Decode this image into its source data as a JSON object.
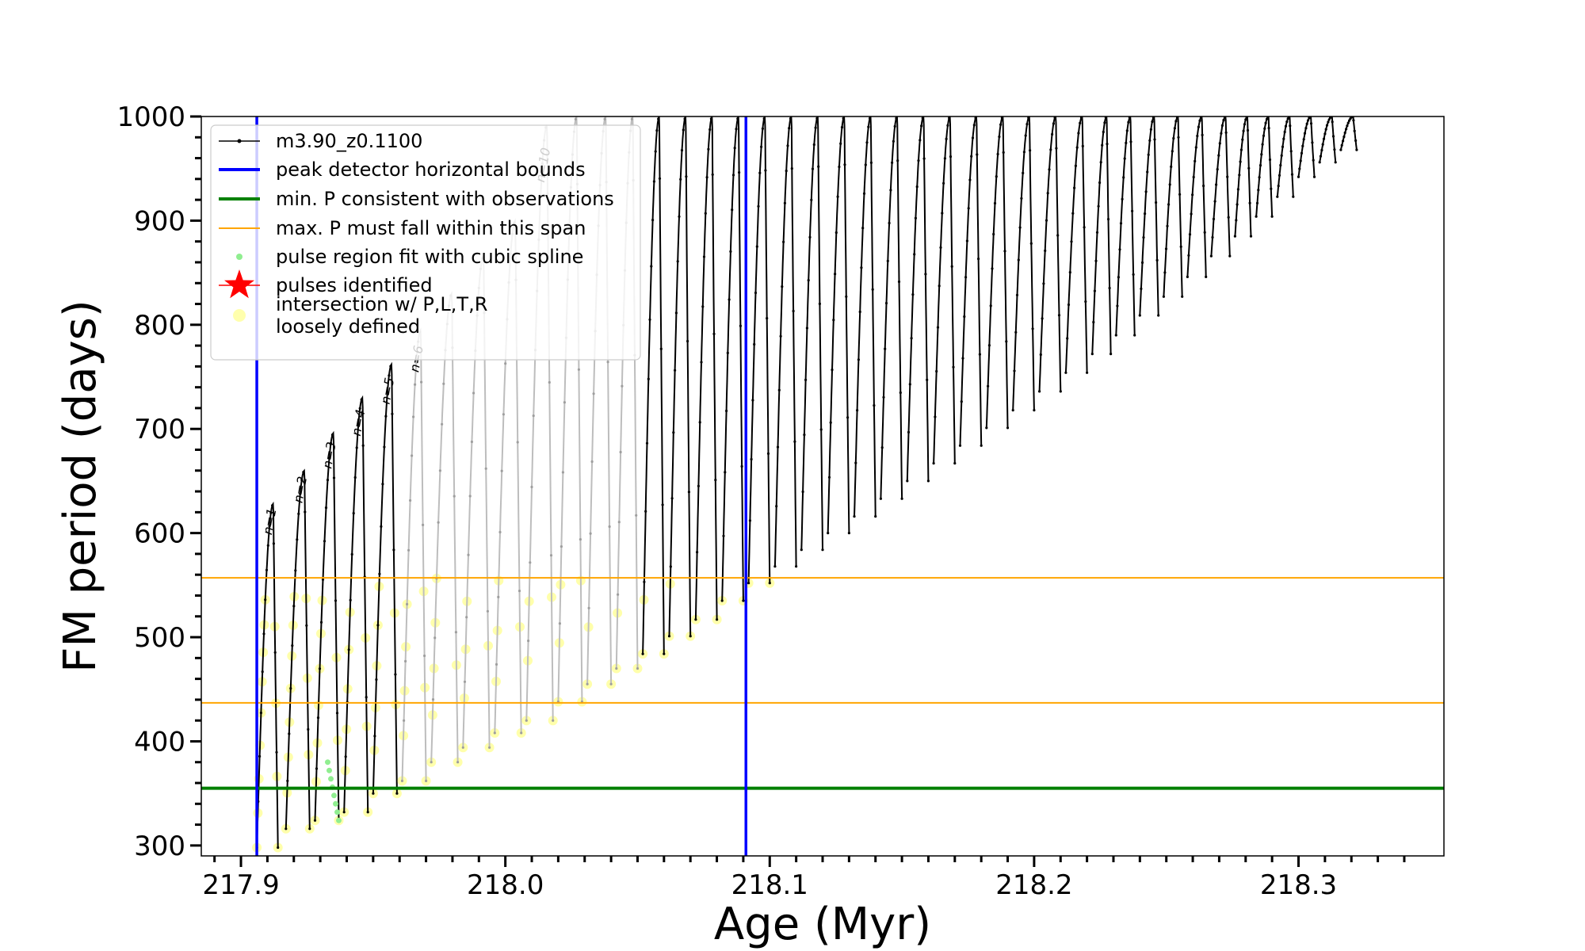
{
  "chart_data": {
    "type": "line",
    "title": "",
    "xlabel": "Age (Myr)",
    "ylabel": "FM period (days)",
    "xlim": [
      217.885,
      218.355
    ],
    "ylim": [
      290,
      1000
    ],
    "x_ticks": [
      217.9,
      218.0,
      218.1,
      218.2,
      218.3
    ],
    "x_tick_labels": [
      "217.9",
      "218.0",
      "218.1",
      "218.2",
      "218.3"
    ],
    "y_ticks": [
      300,
      400,
      500,
      600,
      700,
      800,
      900,
      1000
    ],
    "y_tick_labels": [
      "300",
      "400",
      "500",
      "600",
      "700",
      "800",
      "900",
      "1000"
    ],
    "legend_placement": "upper-left",
    "legend": [
      {
        "label": "m3.90_z0.1100",
        "kind": "line-dot",
        "color": "#000000"
      },
      {
        "label": "peak detector horizontal bounds",
        "kind": "line",
        "color": "#0000ff"
      },
      {
        "label": "min. P consistent with observations",
        "kind": "line",
        "color": "#008000"
      },
      {
        "label": "max. P must fall within this span",
        "kind": "thin-line",
        "color": "#ffa500"
      },
      {
        "label": "pulse region fit with cubic spline",
        "kind": "dot",
        "color": "#90ee90"
      },
      {
        "label": "pulses identified",
        "kind": "star",
        "color": "#ff0000"
      },
      {
        "label": [
          "intersection w/ P,L,T,R",
          "loosely defined"
        ],
        "kind": "circle",
        "color": "#ffff99"
      }
    ],
    "vertical_lines": [
      {
        "x": 217.906,
        "color": "#0000ff",
        "role": "peak detector horizontal bounds"
      },
      {
        "x": 218.091,
        "color": "#0000ff",
        "role": "peak detector horizontal bounds"
      }
    ],
    "horizontal_lines": [
      {
        "y": 355,
        "color": "#008000",
        "role": "min. P consistent with observations"
      },
      {
        "y": 437,
        "color": "#ffa500",
        "role": "max. P span lower"
      },
      {
        "y": 557,
        "color": "#ffa500",
        "role": "max. P span upper"
      }
    ],
    "series": [
      {
        "name": "m3.90_z0.1100",
        "color": "#000000",
        "pulses": [
          {
            "n": "n=1",
            "x_start": 217.906,
            "x_end": 217.914,
            "y_min": 298,
            "y_max": 628
          },
          {
            "n": "n=2",
            "x_start": 217.917,
            "x_end": 217.926,
            "y_min": 316,
            "y_max": 660
          },
          {
            "n": "n=3",
            "x_start": 217.928,
            "x_end": 217.937,
            "y_min": 324,
            "y_max": 696
          },
          {
            "n": "n=4",
            "x_start": 217.939,
            "x_end": 217.948,
            "y_min": 332,
            "y_max": 730
          },
          {
            "n": "n=5",
            "x_start": 217.95,
            "x_end": 217.959,
            "y_min": 350,
            "y_max": 762
          },
          {
            "n": "n=6",
            "x_start": 217.961,
            "x_end": 217.97,
            "y_min": 362,
            "y_max": 795
          },
          {
            "n": "",
            "x_start": 217.972,
            "x_end": 217.982,
            "y_min": 380,
            "y_max": 830
          },
          {
            "n": "",
            "x_start": 217.984,
            "x_end": 217.994,
            "y_min": 394,
            "y_max": 866
          },
          {
            "n": "",
            "x_start": 217.996,
            "x_end": 218.006,
            "y_min": 408,
            "y_max": 900
          },
          {
            "n": "n=10",
            "x_start": 218.008,
            "x_end": 218.018,
            "y_min": 420,
            "y_max": 992
          },
          {
            "n": "",
            "x_start": 218.02,
            "x_end": 218.029,
            "y_min": 438,
            "y_max": 1000
          },
          {
            "n": "",
            "x_start": 218.031,
            "x_end": 218.04,
            "y_min": 455,
            "y_max": 1000
          },
          {
            "n": "",
            "x_start": 218.042,
            "x_end": 218.05,
            "y_min": 470,
            "y_max": 1000
          },
          {
            "n": "",
            "x_start": 218.052,
            "x_end": 218.06,
            "y_min": 484,
            "y_max": 1000
          },
          {
            "n": "",
            "x_start": 218.062,
            "x_end": 218.07,
            "y_min": 501,
            "y_max": 1000
          },
          {
            "n": "",
            "x_start": 218.072,
            "x_end": 218.08,
            "y_min": 517,
            "y_max": 1000
          },
          {
            "n": "",
            "x_start": 218.082,
            "x_end": 218.09,
            "y_min": 535,
            "y_max": 1000
          },
          {
            "n": "",
            "x_start": 218.092,
            "x_end": 218.1,
            "y_min": 552,
            "y_max": 1000
          },
          {
            "n": "",
            "x_start": 218.102,
            "x_end": 218.11,
            "y_min": 568,
            "y_max": 1000
          },
          {
            "n": "",
            "x_start": 218.112,
            "x_end": 218.12,
            "y_min": 584,
            "y_max": 1000
          },
          {
            "n": "",
            "x_start": 218.122,
            "x_end": 218.13,
            "y_min": 600,
            "y_max": 1000
          },
          {
            "n": "",
            "x_start": 218.132,
            "x_end": 218.14,
            "y_min": 616,
            "y_max": 1000
          },
          {
            "n": "",
            "x_start": 218.142,
            "x_end": 218.15,
            "y_min": 633,
            "y_max": 1000
          },
          {
            "n": "",
            "x_start": 218.152,
            "x_end": 218.16,
            "y_min": 650,
            "y_max": 1000
          },
          {
            "n": "",
            "x_start": 218.162,
            "x_end": 218.17,
            "y_min": 667,
            "y_max": 1000
          },
          {
            "n": "",
            "x_start": 218.172,
            "x_end": 218.18,
            "y_min": 684,
            "y_max": 1000
          },
          {
            "n": "",
            "x_start": 218.182,
            "x_end": 218.19,
            "y_min": 701,
            "y_max": 1000
          },
          {
            "n": "",
            "x_start": 218.192,
            "x_end": 218.2,
            "y_min": 718,
            "y_max": 1000
          },
          {
            "n": "",
            "x_start": 218.202,
            "x_end": 218.21,
            "y_min": 736,
            "y_max": 1000
          },
          {
            "n": "",
            "x_start": 218.212,
            "x_end": 218.22,
            "y_min": 754,
            "y_max": 1000
          },
          {
            "n": "",
            "x_start": 218.222,
            "x_end": 218.229,
            "y_min": 772,
            "y_max": 1000
          },
          {
            "n": "",
            "x_start": 218.231,
            "x_end": 218.238,
            "y_min": 790,
            "y_max": 1000
          },
          {
            "n": "",
            "x_start": 218.24,
            "x_end": 218.247,
            "y_min": 809,
            "y_max": 1000
          },
          {
            "n": "",
            "x_start": 218.249,
            "x_end": 218.256,
            "y_min": 827,
            "y_max": 1000
          },
          {
            "n": "",
            "x_start": 218.258,
            "x_end": 218.265,
            "y_min": 846,
            "y_max": 1000
          },
          {
            "n": "",
            "x_start": 218.267,
            "x_end": 218.274,
            "y_min": 866,
            "y_max": 1000
          },
          {
            "n": "",
            "x_start": 218.276,
            "x_end": 218.282,
            "y_min": 885,
            "y_max": 1000
          },
          {
            "n": "",
            "x_start": 218.284,
            "x_end": 218.29,
            "y_min": 904,
            "y_max": 1000
          },
          {
            "n": "",
            "x_start": 218.292,
            "x_end": 218.298,
            "y_min": 923,
            "y_max": 1000
          },
          {
            "n": "",
            "x_start": 218.3,
            "x_end": 218.306,
            "y_min": 942,
            "y_max": 1000
          },
          {
            "n": "",
            "x_start": 218.308,
            "x_end": 218.314,
            "y_min": 956,
            "y_max": 1000
          },
          {
            "n": "",
            "x_start": 218.316,
            "x_end": 218.322,
            "y_min": 968,
            "y_max": 1000
          }
        ]
      }
    ]
  }
}
